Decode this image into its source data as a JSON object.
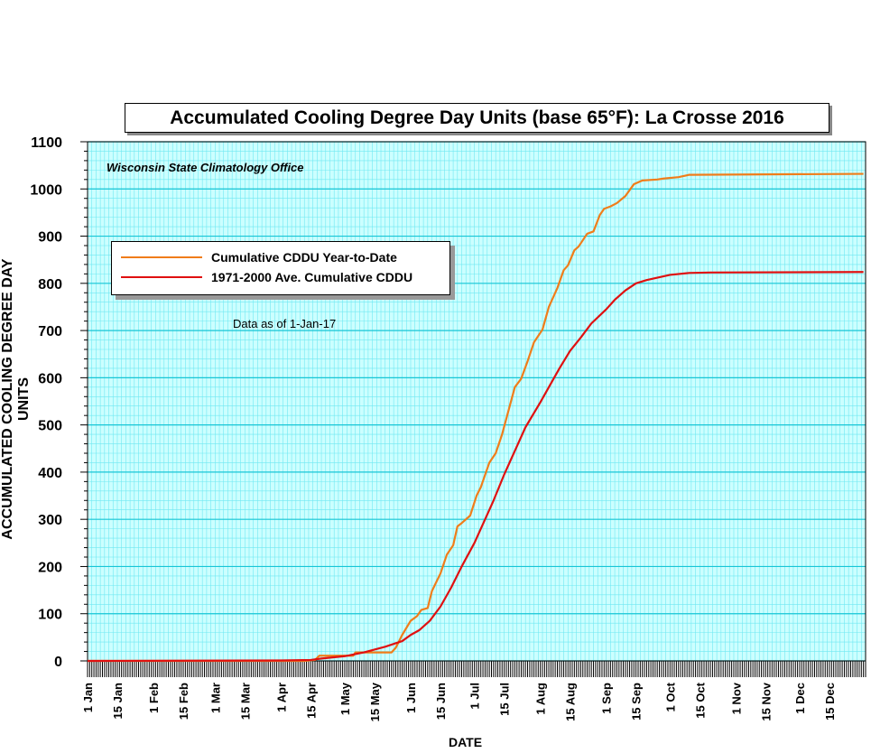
{
  "chart_data": {
    "type": "line",
    "title": "Accumulated Cooling Degree Day Units (base 65°F): La Crosse 2016",
    "credit": "Wisconsin State Climatology Office",
    "annotation": "Data as of 1-Jan-17",
    "xlabel": "DATE",
    "ylabel": "ACCUMULATED COOLING DEGREE DAY UNITS",
    "ylim": [
      0,
      1100
    ],
    "xlim": [
      "2016-01-01",
      "2016-12-31"
    ],
    "yticks": [
      0,
      100,
      200,
      300,
      400,
      500,
      600,
      700,
      800,
      900,
      1000,
      1100
    ],
    "xtick_labels": [
      "1 Jan",
      "15 Jan",
      "1 Feb",
      "15 Feb",
      "1 Mar",
      "15 Mar",
      "1 Apr",
      "15 Apr",
      "1 May",
      "15 May",
      "1 Jun",
      "15 Jun",
      "1 Jul",
      "15 Jul",
      "1 Aug",
      "15 Aug",
      "1 Sep",
      "15 Sep",
      "1 Oct",
      "15 Oct",
      "1 Nov",
      "15 Nov",
      "1 Dec",
      "15 Dec"
    ],
    "grid": true,
    "legend_position": "upper-left",
    "colors": {
      "plot_bg": "#ccffff",
      "minor_grid": "#6fe8f2",
      "major_grid": "#17c6d6"
    },
    "series": [
      {
        "name": "Cumulative CDDU Year-to-Date",
        "color": "#f07d1a",
        "points": [
          [
            "2016-01-01",
            0
          ],
          [
            "2016-04-12",
            0
          ],
          [
            "2016-04-17",
            2
          ],
          [
            "2016-04-19",
            11
          ],
          [
            "2016-05-05",
            11
          ],
          [
            "2016-05-06",
            18
          ],
          [
            "2016-05-23",
            18
          ],
          [
            "2016-05-25",
            28
          ],
          [
            "2016-05-28",
            55
          ],
          [
            "2016-06-01",
            85
          ],
          [
            "2016-06-04",
            95
          ],
          [
            "2016-06-06",
            108
          ],
          [
            "2016-06-09",
            112
          ],
          [
            "2016-06-11",
            148
          ],
          [
            "2016-06-15",
            185
          ],
          [
            "2016-06-18",
            225
          ],
          [
            "2016-06-21",
            245
          ],
          [
            "2016-06-23",
            285
          ],
          [
            "2016-06-25",
            292
          ],
          [
            "2016-06-27",
            300
          ],
          [
            "2016-06-29",
            308
          ],
          [
            "2016-07-02",
            350
          ],
          [
            "2016-07-04",
            368
          ],
          [
            "2016-07-08",
            420
          ],
          [
            "2016-07-11",
            440
          ],
          [
            "2016-07-14",
            480
          ],
          [
            "2016-07-17",
            530
          ],
          [
            "2016-07-20",
            580
          ],
          [
            "2016-07-23",
            598
          ],
          [
            "2016-07-26",
            635
          ],
          [
            "2016-07-29",
            675
          ],
          [
            "2016-08-02",
            702
          ],
          [
            "2016-08-05",
            750
          ],
          [
            "2016-08-09",
            790
          ],
          [
            "2016-08-12",
            828
          ],
          [
            "2016-08-14",
            838
          ],
          [
            "2016-08-17",
            870
          ],
          [
            "2016-08-19",
            878
          ],
          [
            "2016-08-23",
            905
          ],
          [
            "2016-08-26",
            910
          ],
          [
            "2016-08-29",
            945
          ],
          [
            "2016-08-31",
            958
          ],
          [
            "2016-09-03",
            963
          ],
          [
            "2016-09-06",
            970
          ],
          [
            "2016-09-10",
            985
          ],
          [
            "2016-09-14",
            1010
          ],
          [
            "2016-09-18",
            1018
          ],
          [
            "2016-09-25",
            1020
          ],
          [
            "2016-09-28",
            1022
          ],
          [
            "2016-10-05",
            1025
          ],
          [
            "2016-10-10",
            1030
          ],
          [
            "2016-12-31",
            1032
          ]
        ]
      },
      {
        "name": "1971-2000 Ave. Cumulative CDDU",
        "color": "#e01010",
        "points": [
          [
            "2016-01-01",
            0
          ],
          [
            "2016-04-01",
            1
          ],
          [
            "2016-04-15",
            2
          ],
          [
            "2016-04-20",
            5
          ],
          [
            "2016-05-01",
            10
          ],
          [
            "2016-05-10",
            18
          ],
          [
            "2016-05-20",
            30
          ],
          [
            "2016-05-28",
            42
          ],
          [
            "2016-06-01",
            55
          ],
          [
            "2016-06-05",
            65
          ],
          [
            "2016-06-10",
            85
          ],
          [
            "2016-06-15",
            115
          ],
          [
            "2016-06-20",
            155
          ],
          [
            "2016-06-25",
            200
          ],
          [
            "2016-07-01",
            250
          ],
          [
            "2016-07-05",
            290
          ],
          [
            "2016-07-10",
            340
          ],
          [
            "2016-07-15",
            395
          ],
          [
            "2016-07-20",
            445
          ],
          [
            "2016-07-25",
            495
          ],
          [
            "2016-08-01",
            548
          ],
          [
            "2016-08-05",
            580
          ],
          [
            "2016-08-10",
            620
          ],
          [
            "2016-08-15",
            657
          ],
          [
            "2016-08-20",
            685
          ],
          [
            "2016-08-25",
            715
          ],
          [
            "2016-09-01",
            745
          ],
          [
            "2016-09-05",
            765
          ],
          [
            "2016-09-10",
            785
          ],
          [
            "2016-09-15",
            800
          ],
          [
            "2016-09-20",
            807
          ],
          [
            "2016-09-25",
            812
          ],
          [
            "2016-10-01",
            818
          ],
          [
            "2016-10-10",
            822
          ],
          [
            "2016-10-20",
            823
          ],
          [
            "2016-12-31",
            824
          ]
        ]
      }
    ]
  }
}
